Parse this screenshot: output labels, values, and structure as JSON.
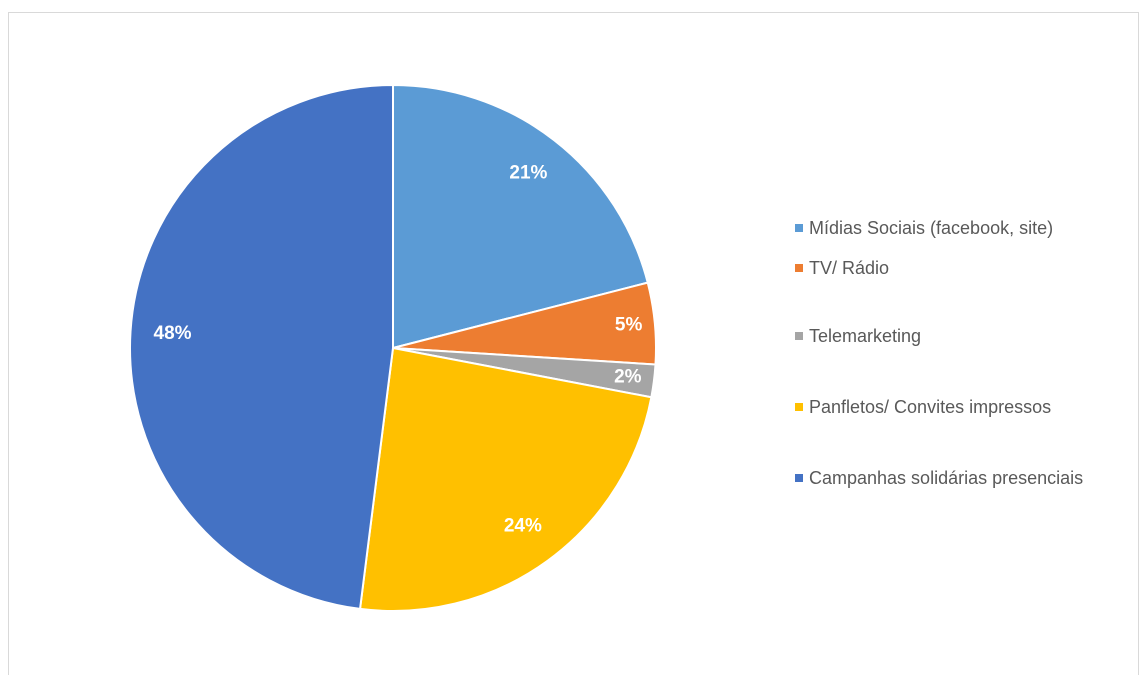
{
  "chart_data": {
    "type": "pie",
    "categories": [
      "Mídias Sociais (facebook, site)",
      "TV/ Rádio",
      "Telemarketing",
      "Panfletos/ Convites impressos",
      "Campanhas solidárias presenciais"
    ],
    "values": [
      21,
      5,
      2,
      24,
      48
    ],
    "value_labels": [
      "21%",
      "5%",
      "2%",
      "24%",
      "48%"
    ],
    "colors": [
      "#5b9bd5",
      "#ed7d31",
      "#a5a5a5",
      "#ffc000",
      "#4472c4"
    ],
    "legend": "right"
  }
}
